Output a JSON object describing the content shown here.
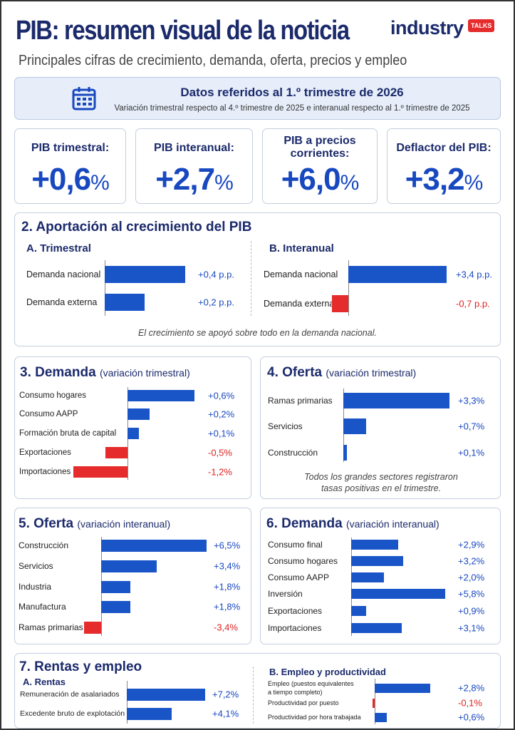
{
  "header": {
    "title": "PIB: resumen visual de la noticia",
    "subtitle": "Principales cifras de crecimiento, demanda, oferta, precios y empleo",
    "logo_text": "industry",
    "logo_badge": "TALKS"
  },
  "date_box": {
    "icon": "calendar-icon",
    "title": "Datos referidos al 1.º trimestre de 2026",
    "subtitle": "Variación trimestral respecto al 4.º trimestre de 2025 e interanual respecto al 1.º trimestre de 2025"
  },
  "kpis": [
    {
      "label": "PIB trimestral:",
      "value": "+0,6",
      "unit": "%"
    },
    {
      "label": "PIB interanual:",
      "value": "+2,7",
      "unit": "%"
    },
    {
      "label": "PIB a precios corrientes:",
      "value": "+6,0",
      "unit": "%"
    },
    {
      "label": "Deflactor del PIB:",
      "value": "+3,2",
      "unit": "%"
    }
  ],
  "colors": {
    "positive": "#1a55c8",
    "negative": "#e52b2b",
    "title": "#1b2a6b"
  },
  "sections": {
    "s2": {
      "title": "2. Aportación al crecimiento del PIB",
      "note": "El crecimiento se apoyó sobre todo en la demanda nacional."
    },
    "s3": {
      "title": "3. Demanda",
      "paren": "(variación trimestral)"
    },
    "s4": {
      "title": "4. Oferta",
      "paren": "(variación trimestral)",
      "note": "Todos los grandes sectores registraron tasas positivas en el trimestre."
    },
    "s5": {
      "title": "5. Oferta",
      "paren": "(variación interanual)"
    },
    "s6": {
      "title": "6. Demanda",
      "paren": "(variación interanual)"
    },
    "s7": {
      "title": "7. Rentas y empleo"
    }
  },
  "chart_data": [
    {
      "type": "bar",
      "title": "A. Trimestral",
      "unit": "p.p.",
      "categories": [
        "Demanda nacional",
        "Demanda externa"
      ],
      "values": [
        0.4,
        0.2
      ],
      "labels": [
        "+0,4 p.p.",
        "+0,2 p.p."
      ]
    },
    {
      "type": "bar",
      "title": "B. Interanual",
      "unit": "p.p.",
      "categories": [
        "Demanda nacional",
        "Demanda externa"
      ],
      "values": [
        3.4,
        -0.7
      ],
      "labels": [
        "+3,4 p.p.",
        "-0,7 p.p."
      ]
    },
    {
      "type": "bar",
      "title": "3. Demanda (variación trimestral)",
      "unit": "%",
      "categories": [
        "Consumo hogares",
        "Consumo AAPP",
        "Formación bruta de capital",
        "Exportaciones",
        "Importaciones"
      ],
      "values": [
        0.6,
        0.2,
        0.1,
        -0.5,
        -1.2
      ],
      "labels": [
        "+0,6%",
        "+0,2%",
        "+0,1%",
        "-0,5%",
        "-1,2%"
      ]
    },
    {
      "type": "bar",
      "title": "4. Oferta (variación trimestral)",
      "unit": "%",
      "categories": [
        "Ramas primarias",
        "Servicios",
        "Construcción"
      ],
      "values": [
        3.3,
        0.7,
        0.1
      ],
      "labels": [
        "+3,3%",
        "+0,7%",
        "+0,1%"
      ]
    },
    {
      "type": "bar",
      "title": "5. Oferta (variación interanual)",
      "unit": "%",
      "categories": [
        "Construcción",
        "Servicios",
        "Industria",
        "Manufactura",
        "Ramas primarias"
      ],
      "values": [
        6.5,
        3.4,
        1.8,
        1.8,
        -3.4
      ],
      "labels": [
        "+6,5%",
        "+3,4%",
        "+1,8%",
        "+1,8%",
        "-3,4%"
      ]
    },
    {
      "type": "bar",
      "title": "6. Demanda (variación interanual)",
      "unit": "%",
      "categories": [
        "Consumo final",
        "Consumo hogares",
        "Consumo AAPP",
        "Inversión",
        "Exportaciones",
        "Importaciones"
      ],
      "values": [
        2.9,
        3.2,
        2.0,
        5.8,
        0.9,
        3.1
      ],
      "labels": [
        "+2,9%",
        "+3,2%",
        "+2,0%",
        "+5,8%",
        "+0,9%",
        "+3,1%"
      ]
    },
    {
      "type": "bar",
      "title": "A. Rentas",
      "unit": "%",
      "categories": [
        "Remuneración de asalariados",
        "Excedente bruto de explotación"
      ],
      "values": [
        7.2,
        4.1
      ],
      "labels": [
        "+7,2%",
        "+4,1%"
      ]
    },
    {
      "type": "bar",
      "title": "B. Empleo y productividad",
      "unit": "%",
      "categories": [
        "Empleo (puestos equivalentes a tiempo completo)",
        "Productividad por puesto",
        "Productividad por hora trabajada"
      ],
      "values": [
        2.8,
        -0.1,
        0.6
      ],
      "labels": [
        "+2,8%",
        "-0,1%",
        "+0,6%"
      ]
    }
  ]
}
